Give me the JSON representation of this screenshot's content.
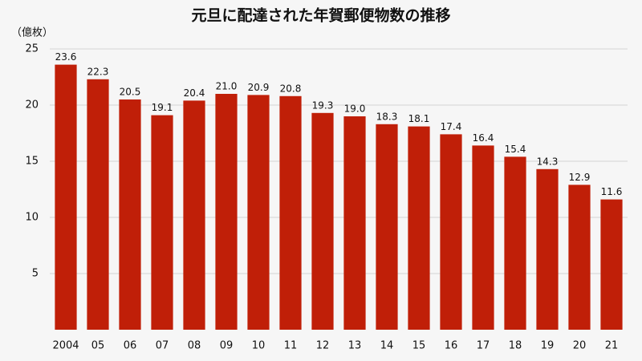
{
  "chart_data": {
    "type": "bar",
    "title": "元旦に配達された年賀郵便物数の推移",
    "y_label": "（億枚）",
    "categories": [
      "2004",
      "05",
      "06",
      "07",
      "08",
      "09",
      "10",
      "11",
      "12",
      "13",
      "14",
      "15",
      "16",
      "17",
      "18",
      "19",
      "20",
      "21"
    ],
    "values": [
      23.6,
      22.3,
      20.5,
      19.1,
      20.4,
      21.0,
      20.9,
      20.8,
      19.3,
      19.0,
      18.3,
      18.1,
      17.4,
      16.4,
      15.4,
      14.3,
      12.9,
      11.6
    ],
    "value_labels": [
      "23.6",
      "22.3",
      "20.5",
      "19.1",
      "20.4",
      "21.0",
      "20.9",
      "20.8",
      "19.3",
      "19.0",
      "18.3",
      "18.1",
      "17.4",
      "16.4",
      "15.4",
      "14.3",
      "12.9",
      "11.6"
    ],
    "color": "#c01f08",
    "ylim": [
      0,
      25
    ],
    "yticks": [
      5,
      10,
      15,
      20,
      25
    ],
    "grid": true
  }
}
